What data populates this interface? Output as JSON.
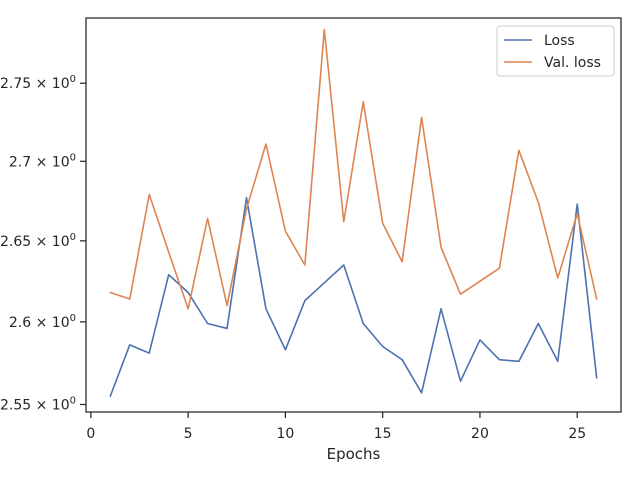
{
  "chart_data": {
    "type": "line",
    "xlabel": "Epochs",
    "ylabel": "",
    "xlim": [
      -0.25,
      27.25
    ],
    "ylim": [
      2.5455,
      2.7925
    ],
    "y_scale": "log",
    "x_ticks": [
      0,
      5,
      10,
      15,
      20,
      25
    ],
    "y_ticks": [
      2.55,
      2.6,
      2.65,
      2.7,
      2.75
    ],
    "y_tick_labels": [
      "2.55",
      "2.6",
      "2.65",
      "2.7",
      "2.75"
    ],
    "y_tick_base": "10",
    "y_tick_exp": "0",
    "grid": false,
    "legend_position": "upper right",
    "x": [
      1,
      2,
      3,
      4,
      5,
      6,
      7,
      8,
      9,
      10,
      11,
      12,
      13,
      14,
      15,
      16,
      17,
      18,
      19,
      20,
      21,
      22,
      23,
      24,
      25,
      26
    ],
    "series": [
      {
        "name": "Loss",
        "color": "#4c72b0",
        "values": [
          2.555,
          2.586,
          2.581,
          2.629,
          2.618,
          2.599,
          2.596,
          2.677,
          2.608,
          2.583,
          2.613,
          2.624,
          2.635,
          2.599,
          2.585,
          2.577,
          2.557,
          2.608,
          2.564,
          2.589,
          2.577,
          2.576,
          2.599,
          2.576,
          2.673,
          2.566
        ]
      },
      {
        "name": "Val. loss",
        "color": "#dd8452",
        "values": [
          2.618,
          2.614,
          2.679,
          2.643,
          2.608,
          2.664,
          2.61,
          2.67,
          2.711,
          2.656,
          2.635,
          2.785,
          2.662,
          2.738,
          2.661,
          2.637,
          2.728,
          2.646,
          2.617,
          2.625,
          2.633,
          2.707,
          2.674,
          2.627,
          2.667,
          2.614
        ]
      }
    ]
  }
}
